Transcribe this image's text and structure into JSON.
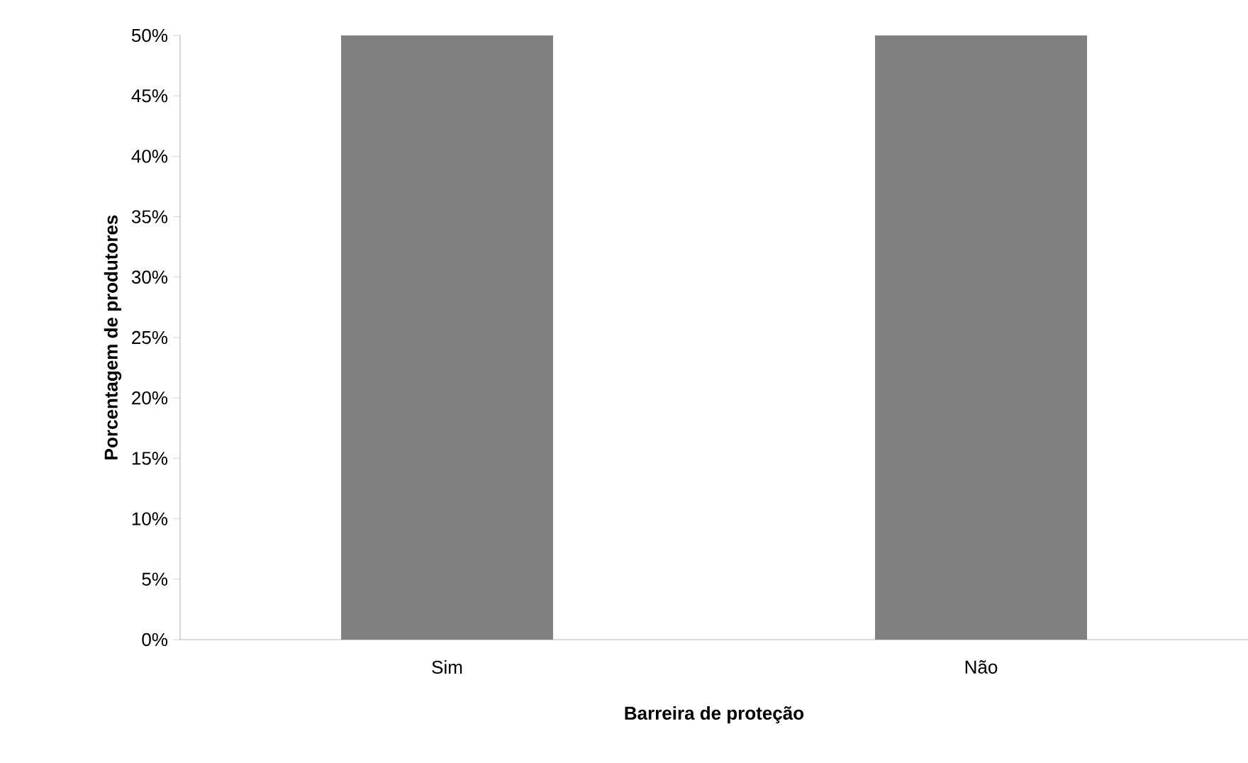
{
  "chart_data": {
    "type": "bar",
    "xlabel": "Barreira de proteção",
    "ylabel": "Porcentagem de produtores",
    "categories": [
      "Sim",
      "Não"
    ],
    "values": [
      50,
      50
    ],
    "color": "#808080",
    "ylim": [
      0,
      50
    ],
    "yticks": [
      {
        "value": 0,
        "label": "0%"
      },
      {
        "value": 5,
        "label": "5%"
      },
      {
        "value": 10,
        "label": "10%"
      },
      {
        "value": 15,
        "label": "15%"
      },
      {
        "value": 20,
        "label": "20%"
      },
      {
        "value": 25,
        "label": "25%"
      },
      {
        "value": 30,
        "label": "30%"
      },
      {
        "value": 35,
        "label": "35%"
      },
      {
        "value": 40,
        "label": "40%"
      },
      {
        "value": 45,
        "label": "45%"
      },
      {
        "value": 50,
        "label": "50%"
      }
    ],
    "grid": false
  }
}
